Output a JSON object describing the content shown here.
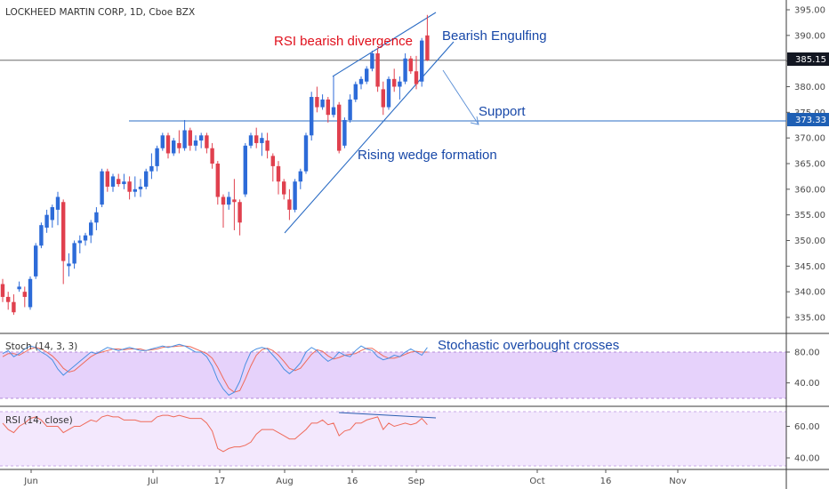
{
  "chart_data": {
    "type": "candlestick",
    "title": "LOCKHEED MARTIN CORP, 1D, Cboe BZX",
    "x_ticks": [
      "Jun",
      "Jul",
      "17",
      "Aug",
      "16",
      "Sep",
      "Oct",
      "16",
      "Nov"
    ],
    "price_axis": {
      "ticks": [
        "395.00",
        "390.00",
        "385.00",
        "380.00",
        "375.00",
        "370.00",
        "365.00",
        "360.00",
        "355.00",
        "350.00",
        "345.00",
        "340.00",
        "335.00"
      ],
      "ylim": [
        333,
        396
      ]
    },
    "current_price": "385.15",
    "support_price": "373.33",
    "candles_ohlc": [
      [
        341.5,
        342.5,
        338.0,
        339.0
      ],
      [
        339.0,
        340.0,
        336.5,
        338.0
      ],
      [
        338.0,
        339.5,
        335.5,
        336.0
      ],
      [
        340.5,
        342.0,
        340.0,
        341.0
      ],
      [
        340.0,
        341.0,
        337.0,
        339.0
      ],
      [
        337.0,
        343.0,
        336.5,
        342.5
      ],
      [
        343.0,
        349.5,
        342.5,
        349.0
      ],
      [
        349.0,
        353.5,
        348.5,
        353.0
      ],
      [
        352.5,
        356.0,
        351.5,
        355.0
      ],
      [
        354.0,
        357.0,
        352.5,
        356.5
      ],
      [
        356.0,
        359.5,
        353.0,
        358.5
      ],
      [
        357.5,
        358.0,
        341.5,
        346.0
      ],
      [
        345.0,
        347.5,
        343.0,
        345.5
      ],
      [
        345.5,
        350.0,
        344.5,
        349.5
      ],
      [
        349.5,
        351.0,
        347.5,
        350.0
      ],
      [
        350.0,
        351.5,
        349.0,
        351.0
      ],
      [
        351.0,
        354.0,
        349.5,
        353.5
      ],
      [
        353.5,
        356.5,
        352.0,
        355.5
      ],
      [
        357.0,
        364.0,
        356.5,
        363.5
      ],
      [
        363.5,
        364.0,
        359.5,
        360.5
      ],
      [
        360.5,
        363.0,
        359.5,
        362.5
      ],
      [
        362.0,
        363.0,
        360.5,
        361.0
      ],
      [
        361.0,
        363.0,
        360.0,
        361.5
      ],
      [
        361.5,
        362.5,
        358.0,
        359.5
      ],
      [
        359.5,
        362.5,
        358.5,
        360.0
      ],
      [
        360.0,
        362.0,
        358.5,
        360.5
      ],
      [
        360.5,
        364.0,
        360.0,
        363.5
      ],
      [
        363.5,
        367.0,
        362.0,
        364.5
      ],
      [
        364.5,
        368.5,
        363.5,
        368.0
      ],
      [
        368.0,
        371.0,
        367.5,
        370.5
      ],
      [
        370.5,
        371.0,
        366.0,
        367.0
      ],
      [
        367.0,
        370.0,
        366.5,
        369.5
      ],
      [
        369.0,
        371.5,
        367.0,
        368.0
      ],
      [
        368.0,
        373.5,
        367.5,
        371.5
      ],
      [
        371.5,
        372.0,
        367.5,
        368.5
      ],
      [
        368.5,
        370.5,
        367.5,
        369.5
      ],
      [
        369.5,
        371.0,
        368.0,
        370.5
      ],
      [
        370.5,
        371.0,
        367.0,
        368.0
      ],
      [
        368.0,
        369.0,
        364.0,
        365.0
      ],
      [
        365.0,
        365.5,
        357.0,
        358.5
      ],
      [
        358.5,
        359.0,
        352.5,
        357.0
      ],
      [
        357.0,
        359.5,
        356.0,
        358.5
      ],
      [
        358.0,
        362.0,
        352.0,
        357.5
      ],
      [
        357.5,
        358.0,
        351.0,
        353.5
      ],
      [
        359.0,
        369.0,
        358.5,
        368.5
      ],
      [
        368.5,
        371.0,
        368.0,
        370.5
      ],
      [
        370.5,
        372.0,
        368.0,
        369.0
      ],
      [
        369.0,
        371.0,
        366.5,
        370.0
      ],
      [
        369.5,
        371.0,
        366.0,
        367.5
      ],
      [
        366.5,
        367.0,
        361.5,
        364.5
      ],
      [
        364.5,
        365.5,
        359.0,
        361.5
      ],
      [
        361.5,
        362.0,
        358.0,
        359.0
      ],
      [
        358.0,
        360.0,
        354.0,
        356.0
      ],
      [
        356.0,
        362.0,
        355.5,
        361.5
      ],
      [
        361.5,
        364.0,
        360.0,
        363.5
      ],
      [
        363.5,
        371.0,
        363.0,
        370.5
      ],
      [
        370.5,
        379.0,
        369.5,
        378.0
      ],
      [
        378.0,
        380.0,
        375.0,
        376.0
      ],
      [
        376.0,
        378.5,
        375.5,
        377.5
      ],
      [
        377.5,
        378.0,
        373.0,
        374.5
      ],
      [
        374.5,
        382.0,
        374.0,
        376.0
      ],
      [
        376.5,
        377.0,
        367.0,
        367.5
      ],
      [
        368.5,
        374.0,
        368.0,
        373.5
      ],
      [
        373.5,
        378.5,
        373.0,
        377.5
      ],
      [
        377.5,
        381.0,
        377.0,
        380.5
      ],
      [
        380.5,
        382.0,
        379.5,
        381.5
      ],
      [
        381.0,
        384.0,
        380.5,
        383.5
      ],
      [
        383.5,
        387.0,
        383.0,
        386.5
      ],
      [
        386.5,
        387.5,
        379.0,
        380.0
      ],
      [
        379.5,
        381.0,
        374.5,
        376.0
      ],
      [
        376.0,
        382.0,
        375.5,
        381.5
      ],
      [
        381.5,
        383.5,
        379.0,
        380.0
      ],
      [
        380.0,
        382.0,
        377.5,
        381.0
      ],
      [
        381.0,
        386.5,
        380.5,
        385.5
      ],
      [
        385.5,
        386.0,
        382.5,
        383.0
      ],
      [
        383.0,
        386.0,
        379.5,
        380.5
      ],
      [
        381.0,
        389.5,
        380.0,
        389.0
      ],
      [
        390.0,
        394.0,
        385.0,
        385.15
      ]
    ],
    "stoch_label": "Stoch (14, 3, 3)",
    "stoch_ticks": [
      "80.00",
      "40.00"
    ],
    "stoch_k": [
      78,
      82,
      74,
      78,
      84,
      88,
      86,
      80,
      76,
      70,
      58,
      50,
      56,
      62,
      68,
      74,
      80,
      78,
      82,
      86,
      84,
      82,
      84,
      86,
      84,
      82,
      82,
      84,
      86,
      88,
      86,
      88,
      90,
      88,
      84,
      80,
      80,
      74,
      62,
      44,
      32,
      24,
      28,
      42,
      64,
      80,
      84,
      86,
      84,
      76,
      68,
      58,
      52,
      58,
      66,
      80,
      86,
      82,
      74,
      68,
      72,
      80,
      76,
      74,
      82,
      88,
      84,
      82,
      74,
      70,
      72,
      76,
      74,
      80,
      84,
      80,
      76,
      86
    ],
    "stoch_d": [
      74,
      78,
      78,
      76,
      80,
      84,
      86,
      84,
      80,
      75,
      68,
      59,
      54,
      56,
      62,
      68,
      74,
      78,
      80,
      82,
      84,
      84,
      83,
      84,
      84,
      84,
      82,
      83,
      84,
      86,
      87,
      87,
      88,
      88,
      87,
      84,
      81,
      78,
      72,
      60,
      46,
      33,
      28,
      30,
      45,
      62,
      76,
      83,
      85,
      82,
      76,
      68,
      59,
      56,
      59,
      68,
      77,
      83,
      81,
      75,
      71,
      73,
      76,
      77,
      78,
      82,
      85,
      85,
      80,
      75,
      72,
      72,
      74,
      77,
      80,
      81,
      80,
      80
    ],
    "rsi_label": "RSI (14, close)",
    "rsi_ticks": [
      "60.00",
      "40.00"
    ],
    "rsi": [
      62,
      58,
      56,
      60,
      62,
      65,
      66,
      64,
      60,
      60,
      60,
      56,
      58,
      60,
      60,
      62,
      64,
      63,
      66,
      67,
      66,
      66,
      64,
      64,
      64,
      63,
      63,
      63,
      66,
      67,
      67,
      66,
      67,
      66,
      65,
      65,
      65,
      62,
      57,
      46,
      44,
      46,
      47,
      47,
      48,
      50,
      55,
      58,
      58,
      58,
      56,
      54,
      52,
      52,
      55,
      58,
      62,
      62,
      64,
      61,
      62,
      54,
      57,
      58,
      62,
      62,
      64,
      65,
      66,
      58,
      62,
      60,
      61,
      62,
      61,
      62,
      65,
      61
    ],
    "annotations": {
      "rsi_divergence": "RSI bearish divergence",
      "bearish_engulfing": "Bearish Engulfing",
      "support": "Support",
      "rising_wedge": "Rising wedge formation",
      "stoch_crosses": "Stochastic overbought crosses"
    },
    "colors": {
      "up": "#2d6bd8",
      "down": "#e0404e",
      "annotation": "#1848a8",
      "annotation_red": "#e0101c",
      "stoch_k": "#4a90e2",
      "stoch_d": "#ef6a5a",
      "rsi": "#ef6a5a",
      "stoch_band": "#e6d2fb",
      "rsi_band": "#f3e8fd"
    }
  }
}
